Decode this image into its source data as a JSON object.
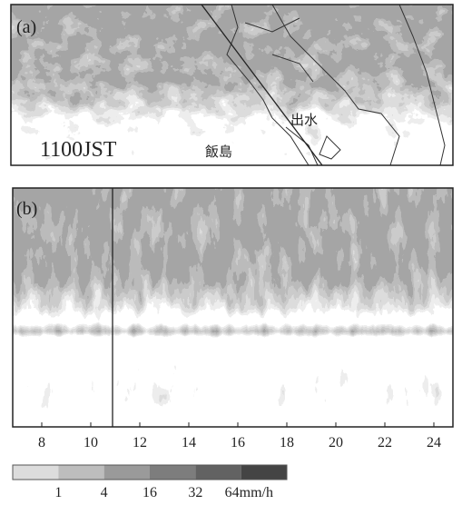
{
  "panel_a": {
    "label": "(a)",
    "time": "1100JST",
    "places": [
      "飯島",
      "出水"
    ]
  },
  "panel_b": {
    "label": "(b)",
    "x_ticks": [
      8,
      10,
      12,
      14,
      16,
      18,
      20,
      22,
      24
    ]
  },
  "colorbar": {
    "labels": [
      "1",
      "4",
      "16",
      "32",
      "64mm/h"
    ]
  }
}
